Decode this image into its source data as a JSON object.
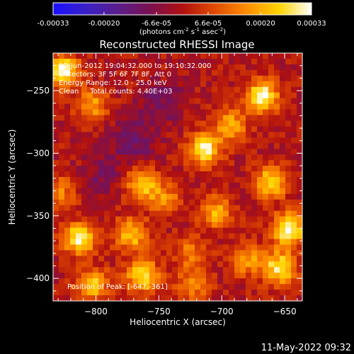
{
  "colorbar": {
    "colors": [
      "#1a10ff",
      "#3820c8",
      "#5a1e8c",
      "#7a1050",
      "#b01010",
      "#e04a00",
      "#ff8e00",
      "#ffd400",
      "#ffffff"
    ],
    "tick_labels": [
      "-0.00033",
      "-0.00020",
      "-6.6e-05",
      "6.6e-05",
      "0.00020",
      "0.00033"
    ],
    "unit_label_parts": [
      "(photons cm",
      "-2",
      " s",
      "-1",
      " asec",
      "-2",
      ")"
    ]
  },
  "chart_data": {
    "type": "heatmap",
    "title": "Reconstructed RHESSI Image",
    "xlabel": "Heliocentric X (arcsec)",
    "ylabel": "Heliocentric Y (arcsec)",
    "xlim": [
      -834,
      -636
    ],
    "ylim": [
      -418,
      -220
    ],
    "x_ticks": [
      -800,
      -750,
      -700,
      -650
    ],
    "x_tick_labels": [
      "−800",
      "−750",
      "−700",
      "−650"
    ],
    "y_ticks": [
      -400,
      -350,
      -300,
      -250
    ],
    "y_tick_labels": [
      "−400",
      "−350",
      "−300",
      "−250"
    ],
    "value_range": [
      -0.00033,
      0.00033
    ],
    "grid": false,
    "info_lines": [
      "12-Jun-2012 19:04:32.000 to 19:10:32.000",
      "Detectors: 3F 5F 6F 7F 8F, Att 0",
      "Energy Range: 12.0 - 25.0 keV",
      "Clean     Total counts: 4.40E+03"
    ],
    "peak_label": "Position of Peak: [-647,-361]",
    "hotspots": [
      {
        "x": -826,
        "y": -235,
        "value": 0.00033
      },
      {
        "x": -803,
        "y": -262,
        "value": 0.00018
      },
      {
        "x": -668,
        "y": -255,
        "value": 0.00033
      },
      {
        "x": -693,
        "y": -278,
        "value": 0.0002
      },
      {
        "x": -714,
        "y": -297,
        "value": 0.0003
      },
      {
        "x": -763,
        "y": -325,
        "value": 0.00026
      },
      {
        "x": -744,
        "y": -338,
        "value": 0.00016
      },
      {
        "x": -704,
        "y": -347,
        "value": 0.0002
      },
      {
        "x": -724,
        "y": -380,
        "value": 0.00014
      },
      {
        "x": -647,
        "y": -361,
        "value": 0.00033
      },
      {
        "x": -661,
        "y": -323,
        "value": 0.00026
      },
      {
        "x": -654,
        "y": -392,
        "value": 0.0003
      },
      {
        "x": -680,
        "y": -385,
        "value": 0.00018
      },
      {
        "x": -772,
        "y": -365,
        "value": 0.00024
      },
      {
        "x": -763,
        "y": -398,
        "value": 0.00028
      },
      {
        "x": -813,
        "y": -368,
        "value": 0.0003
      },
      {
        "x": -803,
        "y": -405,
        "value": 0.00024
      },
      {
        "x": -828,
        "y": -330,
        "value": 0.00014
      },
      {
        "x": -723,
        "y": -405,
        "value": 0.00016
      }
    ],
    "coldspots": [
      {
        "x": -770,
        "y": -290,
        "value": -0.00012
      },
      {
        "x": -748,
        "y": -260,
        "value": -0.0001
      },
      {
        "x": -795,
        "y": -318,
        "value": -8e-05
      }
    ]
  },
  "footer": {
    "timestamp": "11-May-2022 09:32"
  }
}
